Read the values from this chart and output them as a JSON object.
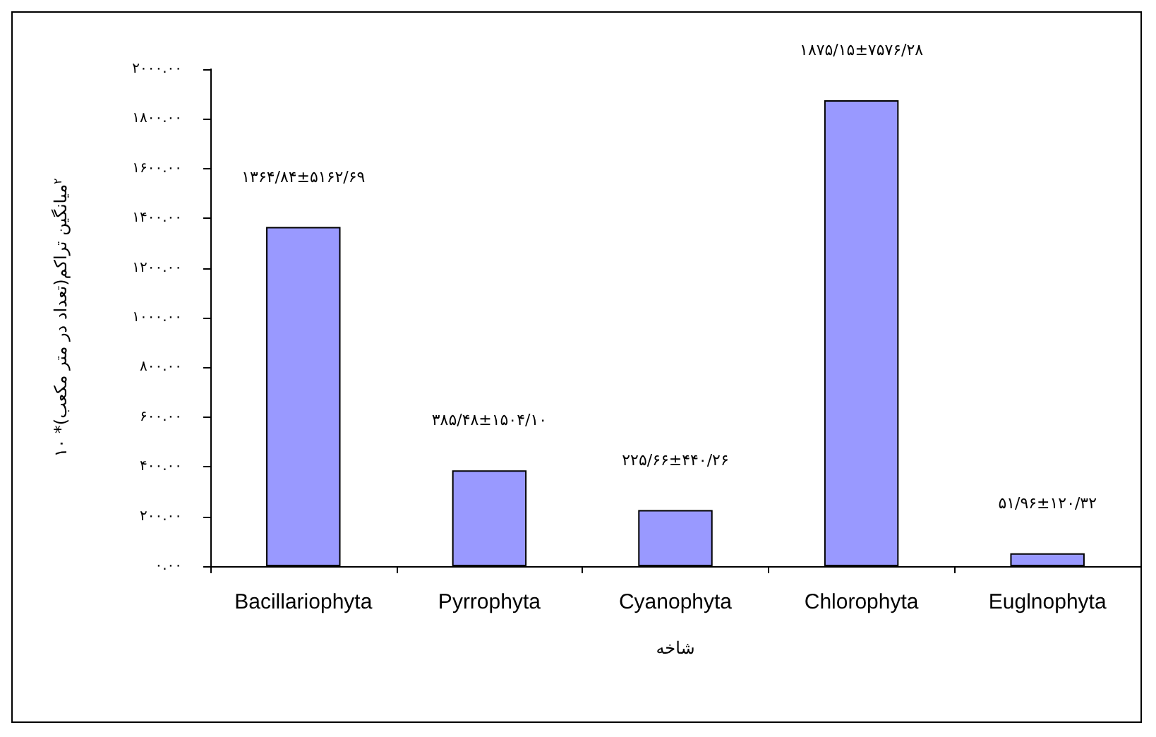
{
  "chart_data": {
    "type": "bar",
    "xlabel": "شاخه",
    "ylabel": "میانگین تراکم(تعداد در متر مکعب)* ۱۰$^{۲}$",
    "categories": [
      "Bacillariophyta",
      "Pyrrophyta",
      "Cyanophyta",
      "Chlorophyta",
      "Euglnophyta"
    ],
    "values": [
      1364.84,
      385.48,
      225.66,
      1875.15,
      51.96
    ],
    "value_labels": [
      "۱۳۶۴/۸۴±۵۱۶۲/۶۹",
      "۳۸۵/۴۸±۱۵۰۴/۱۰",
      "۲۲۵/۶۶±۴۴۰/۲۶",
      "۱۸۷۵/۱۵±۷۵۷۶/۲۸",
      "۵۱/۹۶±۱۲۰/۳۲"
    ],
    "color": "#9999ff",
    "ylim": [
      0,
      2000
    ],
    "yticks": [
      {
        "value": 0,
        "label": "۰.۰۰"
      },
      {
        "value": 200,
        "label": "۲۰۰.۰۰"
      },
      {
        "value": 400,
        "label": "۴۰۰.۰۰"
      },
      {
        "value": 600,
        "label": "۶۰۰.۰۰"
      },
      {
        "value": 800,
        "label": "۸۰۰.۰۰"
      },
      {
        "value": 1000,
        "label": "۱۰۰۰.۰۰"
      },
      {
        "value": 1200,
        "label": "۱۲۰۰.۰۰"
      },
      {
        "value": 1400,
        "label": "۱۴۰۰.۰۰"
      },
      {
        "value": 1600,
        "label": "۱۶۰۰.۰۰"
      },
      {
        "value": 1800,
        "label": "۱۸۰۰.۰۰"
      },
      {
        "value": 2000,
        "label": "۲۰۰۰.۰۰"
      }
    ],
    "grid": false
  }
}
